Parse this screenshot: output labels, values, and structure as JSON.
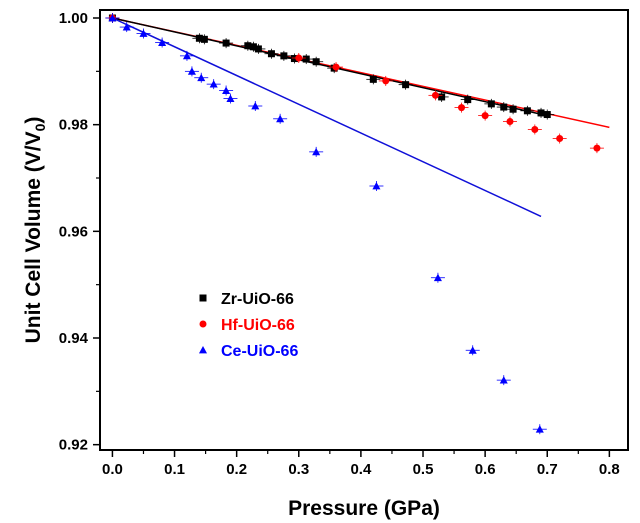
{
  "chart_data": {
    "type": "scatter",
    "xlabel": "Pressure (GPa)",
    "ylabel_main": "Unit Cell Volume (V/V",
    "ylabel_sub": "0",
    "ylabel_close": ")",
    "xlim": [
      -0.02,
      0.83
    ],
    "ylim": [
      0.919,
      1.0015
    ],
    "xticks": [
      0.0,
      0.1,
      0.2,
      0.3,
      0.4,
      0.5,
      0.6,
      0.7,
      0.8
    ],
    "xtick_labels": [
      "0.0",
      "0.1",
      "0.2",
      "0.3",
      "0.4",
      "0.5",
      "0.6",
      "0.7",
      "0.8"
    ],
    "yticks": [
      0.92,
      0.94,
      0.96,
      0.98,
      1.0
    ],
    "ytick_labels": [
      "0.92",
      "0.94",
      "0.96",
      "0.98",
      "1.00"
    ],
    "grid": false,
    "legend_position": "middle-left",
    "series": [
      {
        "name": "Zr-UiO-66",
        "color": "#000000",
        "marker": "square",
        "x": [
          0.0,
          0.14,
          0.148,
          0.183,
          0.218,
          0.227,
          0.235,
          0.256,
          0.276,
          0.293,
          0.312,
          0.328,
          0.357,
          0.42,
          0.472,
          0.53,
          0.572,
          0.61,
          0.63,
          0.645,
          0.668,
          0.69,
          0.7
        ],
        "y": [
          1.0,
          0.9962,
          0.996,
          0.9953,
          0.9948,
          0.9946,
          0.9942,
          0.9933,
          0.9929,
          0.9924,
          0.9923,
          0.9918,
          0.9906,
          0.9885,
          0.9875,
          0.9852,
          0.9847,
          0.9839,
          0.9833,
          0.9829,
          0.9826,
          0.9822,
          0.9819
        ]
      },
      {
        "name": "Hf-UiO-66",
        "color": "#ff0000",
        "marker": "circle",
        "x": [
          0.0,
          0.3,
          0.36,
          0.44,
          0.52,
          0.562,
          0.6,
          0.64,
          0.68,
          0.72,
          0.78
        ],
        "y": [
          1.0,
          0.9925,
          0.9908,
          0.9882,
          0.9855,
          0.9832,
          0.9817,
          0.9806,
          0.9791,
          0.9774,
          0.9756
        ]
      },
      {
        "name": "Ce-UiO-66",
        "color": "#0000ff",
        "marker": "triangle",
        "x": [
          0.0,
          0.023,
          0.05,
          0.08,
          0.12,
          0.128,
          0.143,
          0.163,
          0.183,
          0.19,
          0.23,
          0.27,
          0.328,
          0.425,
          0.524,
          0.58,
          0.63,
          0.688
        ],
        "y": [
          1.0,
          0.9983,
          0.9971,
          0.9954,
          0.9929,
          0.99,
          0.9888,
          0.9876,
          0.9864,
          0.9849,
          0.9835,
          0.9811,
          0.9749,
          0.9685,
          0.9513,
          0.9377,
          0.9321,
          0.9229
        ]
      }
    ],
    "fit_lines": [
      {
        "color": "#ff0000",
        "x": [
          0.0,
          0.8
        ],
        "y": [
          1.0,
          0.9795
        ]
      },
      {
        "color": "#000000",
        "x": [
          0.0,
          0.7
        ],
        "y": [
          1.0,
          0.9817
        ]
      },
      {
        "color": "#1010d8",
        "x": [
          0.0,
          0.69
        ],
        "y": [
          1.0,
          0.9628
        ]
      }
    ]
  }
}
